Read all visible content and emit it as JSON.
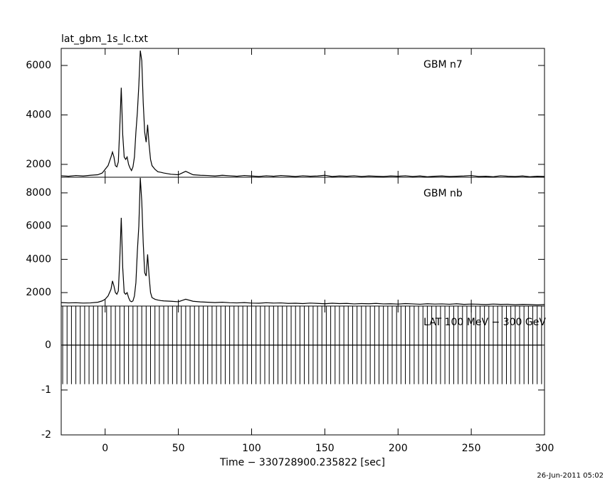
{
  "chart_data": [
    {
      "type": "line",
      "title": "lat_gbm_1s_lc.txt",
      "annotation": "GBM n7",
      "color": "#000000",
      "xlim": [
        -30,
        300
      ],
      "xticks": [
        0,
        50,
        100,
        150,
        200,
        250,
        300
      ],
      "ylim": [
        1480,
        6690
      ],
      "yticks": [
        2000,
        4000,
        6000
      ],
      "x": [
        -30,
        -25,
        -20,
        -15,
        -10,
        -5,
        -2,
        0,
        2,
        4,
        5,
        6,
        7,
        8,
        9,
        10,
        11,
        12,
        13,
        14,
        15,
        16,
        17,
        18,
        19,
        20,
        21,
        22,
        23,
        24,
        25,
        26,
        27,
        28,
        29,
        30,
        31,
        32,
        34,
        36,
        38,
        40,
        45,
        50,
        55,
        60,
        65,
        70,
        75,
        80,
        85,
        90,
        95,
        100,
        105,
        110,
        115,
        120,
        125,
        130,
        135,
        140,
        145,
        150,
        155,
        160,
        165,
        170,
        175,
        180,
        185,
        190,
        195,
        200,
        205,
        210,
        215,
        220,
        225,
        230,
        235,
        240,
        245,
        250,
        255,
        260,
        265,
        270,
        275,
        280,
        285,
        290,
        295,
        300
      ],
      "values": [
        1540,
        1520,
        1550,
        1530,
        1560,
        1580,
        1650,
        1800,
        1950,
        2300,
        2500,
        2300,
        1950,
        1900,
        2100,
        3500,
        5100,
        3200,
        2300,
        2200,
        2300,
        2000,
        1850,
        1750,
        1900,
        2300,
        3300,
        4100,
        5200,
        6600,
        6200,
        4500,
        3300,
        2900,
        3600,
        2800,
        2200,
        1950,
        1800,
        1700,
        1680,
        1650,
        1600,
        1580,
        1720,
        1580,
        1560,
        1550,
        1530,
        1560,
        1540,
        1520,
        1550,
        1530,
        1510,
        1540,
        1520,
        1550,
        1530,
        1510,
        1540,
        1520,
        1530,
        1560,
        1510,
        1530,
        1520,
        1540,
        1510,
        1530,
        1520,
        1510,
        1530,
        1520,
        1540,
        1510,
        1530,
        1500,
        1520,
        1530,
        1510,
        1520,
        1530,
        1550,
        1510,
        1520,
        1500,
        1540,
        1520,
        1510,
        1530,
        1500,
        1520,
        1510
      ]
    },
    {
      "type": "line",
      "annotation": "GBM nb",
      "color": "#000000",
      "xlim": [
        -30,
        300
      ],
      "xticks": [
        0,
        50,
        100,
        150,
        200,
        250,
        300
      ],
      "ylim": [
        1190,
        8940
      ],
      "yticks": [
        2000,
        4000,
        6000,
        8000
      ],
      "x": [
        -30,
        -25,
        -20,
        -15,
        -10,
        -5,
        -2,
        0,
        2,
        4,
        5,
        6,
        7,
        8,
        9,
        10,
        11,
        12,
        13,
        14,
        15,
        16,
        17,
        18,
        19,
        20,
        21,
        22,
        23,
        24,
        25,
        26,
        27,
        28,
        29,
        30,
        31,
        32,
        34,
        36,
        38,
        40,
        45,
        50,
        55,
        60,
        65,
        70,
        75,
        80,
        85,
        90,
        95,
        100,
        105,
        110,
        115,
        120,
        125,
        130,
        135,
        140,
        145,
        150,
        155,
        160,
        165,
        170,
        175,
        180,
        185,
        190,
        195,
        200,
        205,
        210,
        215,
        220,
        225,
        230,
        235,
        240,
        245,
        250,
        255,
        260,
        265,
        270,
        275,
        280,
        285,
        290,
        295,
        300
      ],
      "values": [
        1400,
        1380,
        1390,
        1370,
        1380,
        1420,
        1500,
        1600,
        1800,
        2200,
        2700,
        2400,
        2000,
        1900,
        2100,
        4000,
        6500,
        3500,
        2000,
        1900,
        2000,
        1700,
        1500,
        1450,
        1500,
        1800,
        2600,
        4500,
        6000,
        8900,
        7500,
        5000,
        3200,
        3000,
        4300,
        3000,
        2000,
        1700,
        1600,
        1550,
        1520,
        1500,
        1480,
        1450,
        1600,
        1480,
        1440,
        1420,
        1400,
        1420,
        1390,
        1380,
        1400,
        1370,
        1360,
        1390,
        1370,
        1380,
        1350,
        1360,
        1340,
        1370,
        1350,
        1330,
        1360,
        1340,
        1350,
        1320,
        1340,
        1330,
        1350,
        1320,
        1330,
        1310,
        1340,
        1320,
        1300,
        1330,
        1310,
        1320,
        1300,
        1330,
        1290,
        1310,
        1300,
        1280,
        1310,
        1290,
        1300,
        1270,
        1290,
        1280,
        1260,
        1280
      ]
    },
    {
      "type": "errorbar",
      "annotation": "LAT 100 MeV − 300 GeV",
      "color": "#000000",
      "xlabel": "Time − 330728900.235822 [sec]",
      "xlim": [
        -30,
        300
      ],
      "xticks": [
        0,
        50,
        100,
        150,
        200,
        250,
        300
      ],
      "ylim": [
        -2,
        0.87
      ],
      "yticks": [
        -2,
        -1,
        0
      ],
      "x": [
        -29,
        -26,
        -23,
        -20,
        -17,
        -14,
        -11,
        -8,
        -5,
        -2,
        1,
        4,
        7,
        10,
        13,
        16,
        19,
        22,
        25,
        28,
        31,
        34,
        37,
        40,
        43,
        46,
        49,
        52,
        55,
        58,
        61,
        64,
        67,
        70,
        73,
        76,
        79,
        82,
        85,
        88,
        91,
        94,
        97,
        100,
        103,
        106,
        109,
        112,
        115,
        118,
        121,
        124,
        127,
        130,
        133,
        136,
        139,
        142,
        145,
        148,
        151,
        154,
        157,
        160,
        163,
        166,
        169,
        172,
        175,
        178,
        181,
        184,
        187,
        190,
        193,
        196,
        199,
        202,
        205,
        208,
        211,
        214,
        217,
        220,
        223,
        226,
        229,
        232,
        235,
        238,
        241,
        244,
        247,
        250,
        253,
        256,
        259,
        262,
        265,
        268,
        271,
        274,
        277,
        280,
        283,
        286,
        289,
        292,
        295,
        298
      ],
      "values": [
        0,
        0,
        0,
        0,
        0,
        0,
        0,
        0,
        0,
        0,
        0,
        0,
        0,
        0,
        0,
        0,
        0,
        0,
        0,
        0,
        0,
        0,
        0,
        0,
        0,
        0,
        0,
        0,
        0,
        0,
        0,
        0,
        0,
        0,
        0,
        0,
        0,
        0,
        0,
        0,
        0,
        0,
        0,
        0,
        0,
        0,
        0,
        0,
        0,
        0,
        0,
        0,
        0,
        0,
        0,
        0,
        0,
        0,
        0,
        0,
        0,
        0,
        0,
        0,
        0,
        0,
        0,
        0,
        0,
        0,
        0,
        0,
        0,
        0,
        0,
        0,
        0,
        0,
        0,
        0,
        0,
        0,
        0,
        0,
        0,
        0,
        0,
        0,
        0,
        0,
        0,
        0,
        0,
        0,
        0,
        0,
        0,
        0,
        0,
        0,
        0,
        0,
        0,
        0,
        0,
        0,
        0,
        0,
        0,
        0
      ],
      "errors": [
        0.87,
        0.87,
        0.87,
        0.87,
        0.87,
        0.87,
        0.87,
        0.87,
        0.87,
        0.87,
        0.87,
        0.87,
        0.87,
        0.87,
        0.87,
        0.87,
        0.87,
        0.87,
        0.87,
        0.87,
        0.87,
        0.87,
        0.87,
        0.87,
        0.87,
        0.87,
        0.87,
        0.87,
        0.87,
        0.87,
        0.87,
        0.87,
        0.87,
        0.87,
        0.87,
        0.87,
        0.87,
        0.87,
        0.87,
        0.87,
        0.87,
        0.87,
        0.87,
        0.87,
        0.87,
        0.87,
        0.87,
        0.87,
        0.87,
        0.87,
        0.87,
        0.87,
        0.87,
        0.87,
        0.87,
        0.87,
        0.87,
        0.87,
        0.87,
        0.87,
        0.87,
        0.87,
        0.87,
        0.87,
        0.87,
        0.87,
        0.87,
        0.87,
        0.87,
        0.87,
        0.87,
        0.87,
        0.87,
        0.87,
        0.87,
        0.87,
        0.87,
        0.87,
        0.87,
        0.87,
        0.87,
        0.87,
        0.87,
        0.87,
        0.87,
        0.87,
        0.87,
        0.87,
        0.87,
        0.87,
        0.87,
        0.87,
        0.87,
        0.87,
        0.87,
        0.87,
        0.87,
        0.87,
        0.87,
        0.87,
        0.87,
        0.87,
        0.87,
        0.87,
        0.87,
        0.87,
        0.87,
        0.87,
        0.87,
        0.87
      ]
    }
  ],
  "footer": "26-Jun-2011 05:02"
}
